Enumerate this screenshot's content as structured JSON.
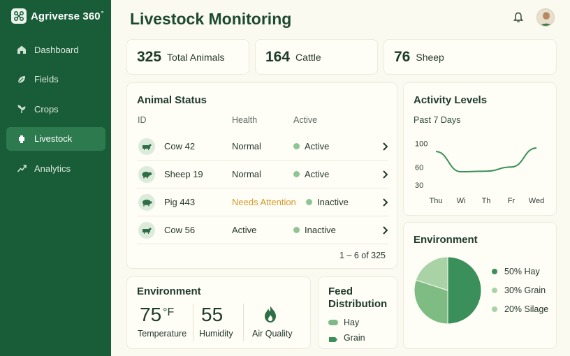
{
  "app": {
    "name": "Agriverse 360",
    "name_suffix": "°"
  },
  "sidebar": {
    "items": [
      {
        "label": "Dashboard",
        "icon": "home-icon",
        "active": false
      },
      {
        "label": "Fields",
        "icon": "leaf-icon",
        "active": false
      },
      {
        "label": "Crops",
        "icon": "sprout-icon",
        "active": false
      },
      {
        "label": "Livestock",
        "icon": "livestock-icon",
        "active": true
      },
      {
        "label": "Analytics",
        "icon": "trend-icon",
        "active": false
      }
    ]
  },
  "header": {
    "title": "Livestock Monitoring"
  },
  "stats": [
    {
      "value": "325",
      "label": "Total Animals"
    },
    {
      "value": "164",
      "label": "Cattle"
    },
    {
      "value": "76",
      "label": "Sheep"
    }
  ],
  "animal_status": {
    "title": "Animal Status",
    "columns": [
      "ID",
      "Health",
      "Active"
    ],
    "rows": [
      {
        "id": "Cow 42",
        "health": "Normal",
        "active": "Active",
        "icon": "cow-icon"
      },
      {
        "id": "Sheep 19",
        "health": "Normal",
        "active": "Active",
        "icon": "sheep-icon"
      },
      {
        "id": "Pig 443",
        "health": "Needs Attention",
        "active": "Inactive",
        "icon": "pig-icon"
      },
      {
        "id": "Cow 56",
        "health": "Active",
        "active": "Inactive",
        "icon": "cow-icon"
      }
    ],
    "pagination": "1 – 6 of 325"
  },
  "activity": {
    "title": "Activity Levels",
    "subtitle": "Past 7 Days"
  },
  "chart_data": [
    {
      "type": "line",
      "title": "Activity Levels",
      "subtitle": "Past 7 Days",
      "categories": [
        "Thu",
        "Wi",
        "Th",
        "Fr",
        "Wed"
      ],
      "x": [
        0,
        1,
        2,
        3,
        4
      ],
      "values": [
        86,
        52,
        53,
        60,
        92
      ],
      "yticks": [
        "100",
        "60",
        "30"
      ],
      "ylim": [
        25,
        105
      ],
      "grid": false
    },
    {
      "type": "pie",
      "title": "Environment",
      "slices": [
        {
          "label": "50% Hay",
          "value": 50,
          "color": "#3a8f5a"
        },
        {
          "label": "30% Grain",
          "value": 30,
          "color": "#7fbc83"
        },
        {
          "label": "20% Silage",
          "value": 20,
          "color": "#a9d3a6"
        }
      ]
    }
  ],
  "environment": {
    "title": "Environment",
    "temperature": {
      "value": "75",
      "unit": "°F",
      "label": "Temperature"
    },
    "humidity": {
      "value": "55",
      "label": "Humidity"
    },
    "air_quality": {
      "label": "Air Quality",
      "icon": "flame-icon"
    }
  },
  "feed": {
    "title_line1": "Feed",
    "title_line2": "Distribution",
    "items": [
      {
        "label": "Hay",
        "icon": "pill-icon"
      },
      {
        "label": "Grain",
        "icon": "bag-icon"
      }
    ]
  },
  "colors": {
    "sidebar": "#195c38",
    "accent": "#3a8f5a",
    "warning": "#d49a2c"
  }
}
